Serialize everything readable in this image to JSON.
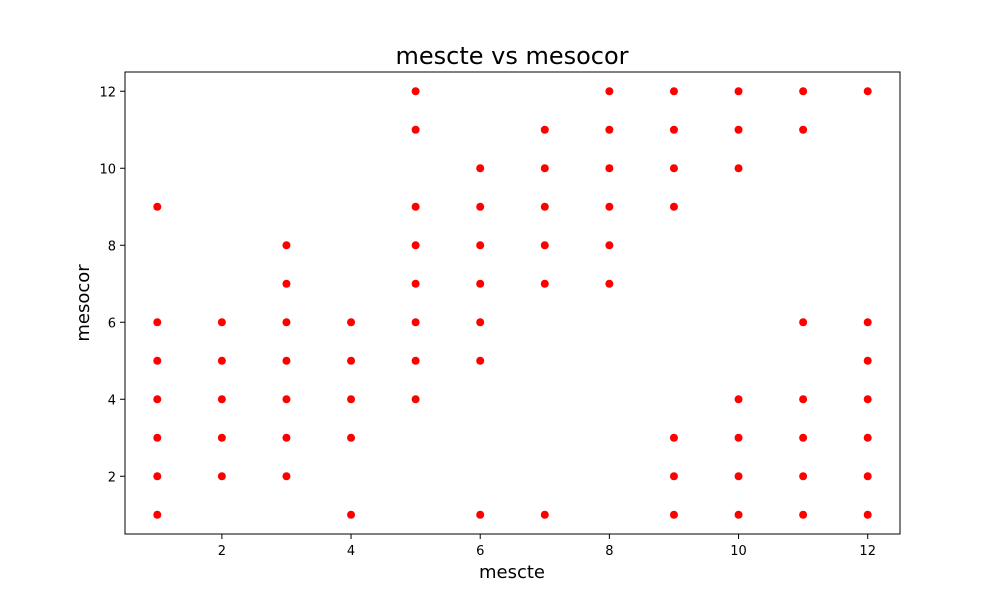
{
  "chart_data": {
    "type": "scatter",
    "title": "mescte vs mesocor",
    "xlabel": "mescte",
    "ylabel": "mesocor",
    "xlim": [
      0.5,
      12.5
    ],
    "ylim": [
      0.5,
      12.5
    ],
    "xticks": [
      2,
      4,
      6,
      8,
      10,
      12
    ],
    "yticks": [
      2,
      4,
      6,
      8,
      10,
      12
    ],
    "grid": false,
    "marker_color": "#ff0000",
    "series": [
      {
        "points": [
          [
            1,
            1
          ],
          [
            1,
            2
          ],
          [
            1,
            3
          ],
          [
            1,
            4
          ],
          [
            1,
            5
          ],
          [
            1,
            6
          ],
          [
            1,
            9
          ],
          [
            2,
            2
          ],
          [
            2,
            3
          ],
          [
            2,
            4
          ],
          [
            2,
            5
          ],
          [
            2,
            6
          ],
          [
            3,
            2
          ],
          [
            3,
            3
          ],
          [
            3,
            4
          ],
          [
            3,
            5
          ],
          [
            3,
            6
          ],
          [
            3,
            7
          ],
          [
            3,
            8
          ],
          [
            4,
            1
          ],
          [
            4,
            3
          ],
          [
            4,
            4
          ],
          [
            4,
            5
          ],
          [
            4,
            6
          ],
          [
            5,
            4
          ],
          [
            5,
            5
          ],
          [
            5,
            6
          ],
          [
            5,
            7
          ],
          [
            5,
            8
          ],
          [
            5,
            9
          ],
          [
            5,
            11
          ],
          [
            5,
            12
          ],
          [
            6,
            1
          ],
          [
            6,
            5
          ],
          [
            6,
            6
          ],
          [
            6,
            7
          ],
          [
            6,
            8
          ],
          [
            6,
            9
          ],
          [
            6,
            10
          ],
          [
            7,
            1
          ],
          [
            7,
            7
          ],
          [
            7,
            8
          ],
          [
            7,
            9
          ],
          [
            7,
            10
          ],
          [
            7,
            11
          ],
          [
            8,
            7
          ],
          [
            8,
            8
          ],
          [
            8,
            9
          ],
          [
            8,
            10
          ],
          [
            8,
            11
          ],
          [
            8,
            12
          ],
          [
            9,
            1
          ],
          [
            9,
            2
          ],
          [
            9,
            3
          ],
          [
            9,
            9
          ],
          [
            9,
            10
          ],
          [
            9,
            11
          ],
          [
            9,
            12
          ],
          [
            10,
            1
          ],
          [
            10,
            2
          ],
          [
            10,
            3
          ],
          [
            10,
            4
          ],
          [
            10,
            10
          ],
          [
            10,
            11
          ],
          [
            10,
            12
          ],
          [
            11,
            1
          ],
          [
            11,
            2
          ],
          [
            11,
            3
          ],
          [
            11,
            4
          ],
          [
            11,
            6
          ],
          [
            11,
            11
          ],
          [
            11,
            12
          ],
          [
            12,
            1
          ],
          [
            12,
            2
          ],
          [
            12,
            3
          ],
          [
            12,
            4
          ],
          [
            12,
            5
          ],
          [
            12,
            6
          ],
          [
            12,
            12
          ]
        ]
      }
    ]
  }
}
